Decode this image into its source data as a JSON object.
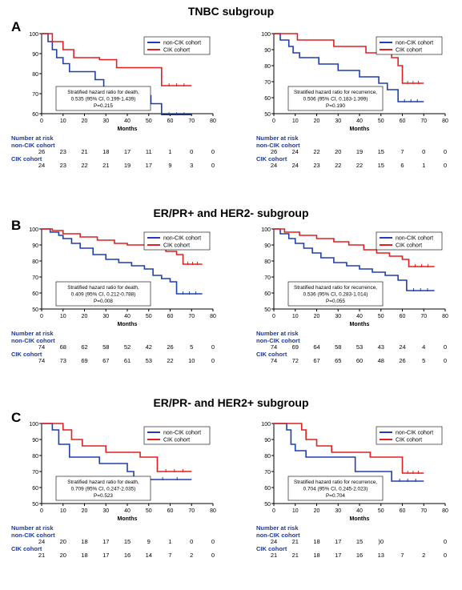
{
  "colors": {
    "non_cik": "#1f3fb0",
    "cik": "#e02020",
    "risk_label": "#1f3a93"
  },
  "panels": [
    {
      "letter": "A",
      "title": "TNBC subgroup",
      "charts": [
        {
          "type": "line",
          "ylim": [
            60,
            100
          ],
          "yticks": [
            60,
            70,
            80,
            90,
            100
          ],
          "xlim": [
            0,
            80
          ],
          "xticks": [
            0,
            10,
            20,
            30,
            40,
            50,
            60,
            70,
            80
          ],
          "xlabel": "Months",
          "legend": "top-right",
          "series": [
            {
              "name": "non-CIK cohort",
              "color": "#1f3fb0",
              "x": [
                0,
                3,
                5,
                7,
                10,
                13,
                25,
                29,
                36,
                51,
                56,
                70
              ],
              "y": [
                100,
                96,
                92,
                88,
                85,
                81,
                77,
                73,
                69,
                65,
                59.5,
                59.5
              ]
            },
            {
              "name": "CIK cohort",
              "color": "#e02020",
              "x": [
                0,
                5,
                10,
                15,
                27,
                35,
                56,
                70
              ],
              "y": [
                100,
                96,
                92,
                88,
                87,
                83,
                74,
                74
              ]
            }
          ],
          "annotation": [
            "Stratified hazard ratio for death,",
            "0.535 (95% CI, 0.199-1.439)",
            "P=0.215"
          ],
          "risk": {
            "header": "Number at risk",
            "rows": [
              {
                "label": "non-CIK cohort",
                "values": [
                  "26",
                  "23",
                  "21",
                  "18",
                  "17",
                  "11",
                  "1",
                  "0",
                  "0"
                ]
              },
              {
                "label": "CIK cohort",
                "values": [
                  "24",
                  "23",
                  "22",
                  "21",
                  "19",
                  "17",
                  "9",
                  "3",
                  "0"
                ]
              }
            ]
          }
        },
        {
          "type": "line",
          "ylim": [
            50,
            100
          ],
          "yticks": [
            50,
            60,
            70,
            80,
            90,
            100
          ],
          "xlim": [
            0,
            80
          ],
          "xticks": [
            0,
            10,
            20,
            30,
            40,
            50,
            60,
            70,
            80
          ],
          "xlabel": "Months",
          "legend": "top-right",
          "series": [
            {
              "name": "non-CIK cohort",
              "color": "#1f3fb0",
              "x": [
                0,
                3,
                7,
                9,
                12,
                21,
                30,
                40,
                49,
                53,
                58,
                70
              ],
              "y": [
                100,
                96,
                92,
                88,
                85,
                81,
                77,
                73,
                69,
                65,
                57.5,
                57.5
              ]
            },
            {
              "name": "CIK cohort",
              "color": "#e02020",
              "x": [
                0,
                11,
                28,
                43,
                55,
                58,
                60,
                70
              ],
              "y": [
                100,
                96,
                92,
                88,
                85,
                80,
                69,
                69
              ]
            }
          ],
          "annotation": [
            "Stratified hazard ratio for recurrence,",
            "0.506 (95% CI, 0.183-1.399)",
            "P=0.190"
          ],
          "risk": {
            "header": "Number at risk",
            "rows": [
              {
                "label": "non-CIK cohort",
                "values": [
                  "26",
                  "24",
                  "22",
                  "20",
                  "19",
                  "15",
                  "7",
                  "0",
                  "0"
                ]
              },
              {
                "label": "CIK cohort",
                "values": [
                  "24",
                  "24",
                  "23",
                  "22",
                  "22",
                  "15",
                  "6",
                  "1",
                  "0"
                ]
              }
            ]
          }
        }
      ]
    },
    {
      "letter": "B",
      "title": "ER/PR+ and HER2- subgroup",
      "charts": [
        {
          "type": "line",
          "ylim": [
            50,
            100
          ],
          "yticks": [
            50,
            60,
            70,
            80,
            90,
            100
          ],
          "xlim": [
            0,
            80
          ],
          "xticks": [
            0,
            10,
            20,
            30,
            40,
            50,
            60,
            70,
            80
          ],
          "xlabel": "Months",
          "legend": "top-right",
          "series": [
            {
              "name": "non-CIK cohort",
              "color": "#1f3fb0",
              "x": [
                0,
                4,
                8,
                10,
                14,
                18,
                24,
                30,
                36,
                42,
                48,
                52,
                56,
                60,
                63,
                75
              ],
              "y": [
                100,
                98,
                96,
                94,
                91,
                88,
                84,
                81,
                79,
                77,
                75,
                71,
                69,
                67,
                59.5,
                59.5
              ]
            },
            {
              "name": "CIK cohort",
              "color": "#e02020",
              "x": [
                0,
                5,
                10,
                18,
                26,
                34,
                40,
                50,
                58,
                63,
                66,
                75
              ],
              "y": [
                100,
                99,
                97,
                95,
                93,
                91,
                90,
                88,
                86,
                84,
                78,
                78
              ]
            }
          ],
          "annotation": [
            "Stratified hazard ratio for death,",
            "0.409 (95% CI, 0.212-0.788)",
            "P=0.008"
          ],
          "risk": {
            "header": "Number at risk",
            "rows": [
              {
                "label": "non-CIK cohort",
                "values": [
                  "74",
                  "68",
                  "62",
                  "58",
                  "52",
                  "42",
                  "26",
                  "5",
                  "0"
                ]
              },
              {
                "label": "CIK cohort",
                "values": [
                  "74",
                  "73",
                  "69",
                  "67",
                  "61",
                  "53",
                  "22",
                  "10",
                  "0"
                ]
              }
            ]
          }
        },
        {
          "type": "line",
          "ylim": [
            50,
            100
          ],
          "yticks": [
            50,
            60,
            70,
            80,
            90,
            100
          ],
          "xlim": [
            0,
            80
          ],
          "xticks": [
            0,
            10,
            20,
            30,
            40,
            50,
            60,
            70,
            80
          ],
          "xlabel": "Months",
          "legend": "top-right",
          "series": [
            {
              "name": "non-CIK cohort",
              "color": "#1f3fb0",
              "x": [
                0,
                3,
                7,
                10,
                14,
                18,
                22,
                28,
                34,
                40,
                46,
                52,
                58,
                62,
                75
              ],
              "y": [
                100,
                97,
                94,
                91,
                88,
                85,
                82,
                79,
                77,
                75,
                73,
                71,
                68,
                61.5,
                61.5
              ]
            },
            {
              "name": "CIK cohort",
              "color": "#e02020",
              "x": [
                0,
                5,
                12,
                20,
                28,
                35,
                42,
                48,
                54,
                60,
                63,
                75
              ],
              "y": [
                100,
                98,
                96,
                94,
                92,
                90,
                87,
                85,
                83,
                81,
                76.5,
                76.5
              ]
            }
          ],
          "annotation": [
            "Stratified hazard ratio for recurrence,",
            "0.536 (95% CI, 0.283-1.014)",
            "P=0.055"
          ],
          "risk": {
            "header": "Number at risk",
            "rows": [
              {
                "label": "non-CIK cohort",
                "values": [
                  "74",
                  "69",
                  "64",
                  "58",
                  "53",
                  "43",
                  "24",
                  "4",
                  "0"
                ]
              },
              {
                "label": "CIK cohort",
                "values": [
                  "74",
                  "72",
                  "67",
                  "65",
                  "60",
                  "48",
                  "26",
                  "5",
                  "0"
                ]
              }
            ]
          }
        }
      ]
    },
    {
      "letter": "C",
      "title": "ER/PR- and HER2+ subgroup",
      "charts": [
        {
          "type": "line",
          "ylim": [
            50,
            100
          ],
          "yticks": [
            50,
            60,
            70,
            80,
            90,
            100
          ],
          "xlim": [
            0,
            80
          ],
          "xticks": [
            0,
            10,
            20,
            30,
            40,
            50,
            60,
            70,
            80
          ],
          "xlabel": "Months",
          "legend": "top-right",
          "series": [
            {
              "name": "non-CIK cohort",
              "color": "#1f3fb0",
              "x": [
                0,
                5,
                8,
                13,
                27,
                40,
                43,
                70
              ],
              "y": [
                100,
                96,
                87,
                79,
                75,
                70,
                65,
                65
              ]
            },
            {
              "name": "CIK cohort",
              "color": "#e02020",
              "x": [
                0,
                10,
                14,
                19,
                30,
                46,
                54,
                70
              ],
              "y": [
                100,
                96,
                90,
                86,
                82,
                79,
                70,
                70
              ]
            }
          ],
          "annotation": [
            "Stratified hazard ratio for death,",
            "0.709 (95% CI, 0.247-2.035)",
            "P=0.523"
          ],
          "risk": {
            "header": "Number at risk",
            "rows": [
              {
                "label": "non-CIK cohort",
                "values": [
                  "24",
                  "20",
                  "18",
                  "17",
                  "15",
                  "9",
                  "1",
                  "0",
                  "0"
                ]
              },
              {
                "label": "CIK cohort",
                "values": [
                  "21",
                  "20",
                  "18",
                  "17",
                  "16",
                  "14",
                  "7",
                  "2",
                  "0"
                ]
              }
            ]
          }
        },
        {
          "type": "line",
          "ylim": [
            50,
            100
          ],
          "yticks": [
            50,
            60,
            70,
            80,
            90,
            100
          ],
          "xlim": [
            0,
            80
          ],
          "xticks": [
            0,
            10,
            20,
            30,
            40,
            50,
            60,
            70,
            80
          ],
          "xlabel": "Months",
          "legend": "top-right",
          "series": [
            {
              "name": "non-CIK cohort",
              "color": "#1f3fb0",
              "x": [
                0,
                6,
                8,
                10,
                15,
                38,
                55,
                70
              ],
              "y": [
                100,
                96,
                87,
                83,
                79,
                70,
                64,
                64
              ]
            },
            {
              "name": "CIK cohort",
              "color": "#e02020",
              "x": [
                0,
                13,
                15,
                20,
                27,
                45,
                60,
                70
              ],
              "y": [
                100,
                96,
                90,
                86,
                82,
                79,
                69,
                69
              ]
            }
          ],
          "annotation": [
            "Stratified hazard ratio for recurrence,",
            "0.704 (95% CI, 0.245-2.023)",
            "P=0.704"
          ],
          "risk": {
            "header": "Number at risk",
            "rows": [
              {
                "label": "non-CIK cohort",
                "values": [
                  "24",
                  "21",
                  "18",
                  "17",
                  "15",
                  ")0",
                  "",
                  "",
                  "0"
                ]
              },
              {
                "label": "CIK cohort",
                "values": [
                  "21",
                  "21",
                  "18",
                  "17",
                  "16",
                  "13",
                  "7",
                  "2",
                  "0"
                ]
              }
            ]
          }
        }
      ]
    }
  ]
}
